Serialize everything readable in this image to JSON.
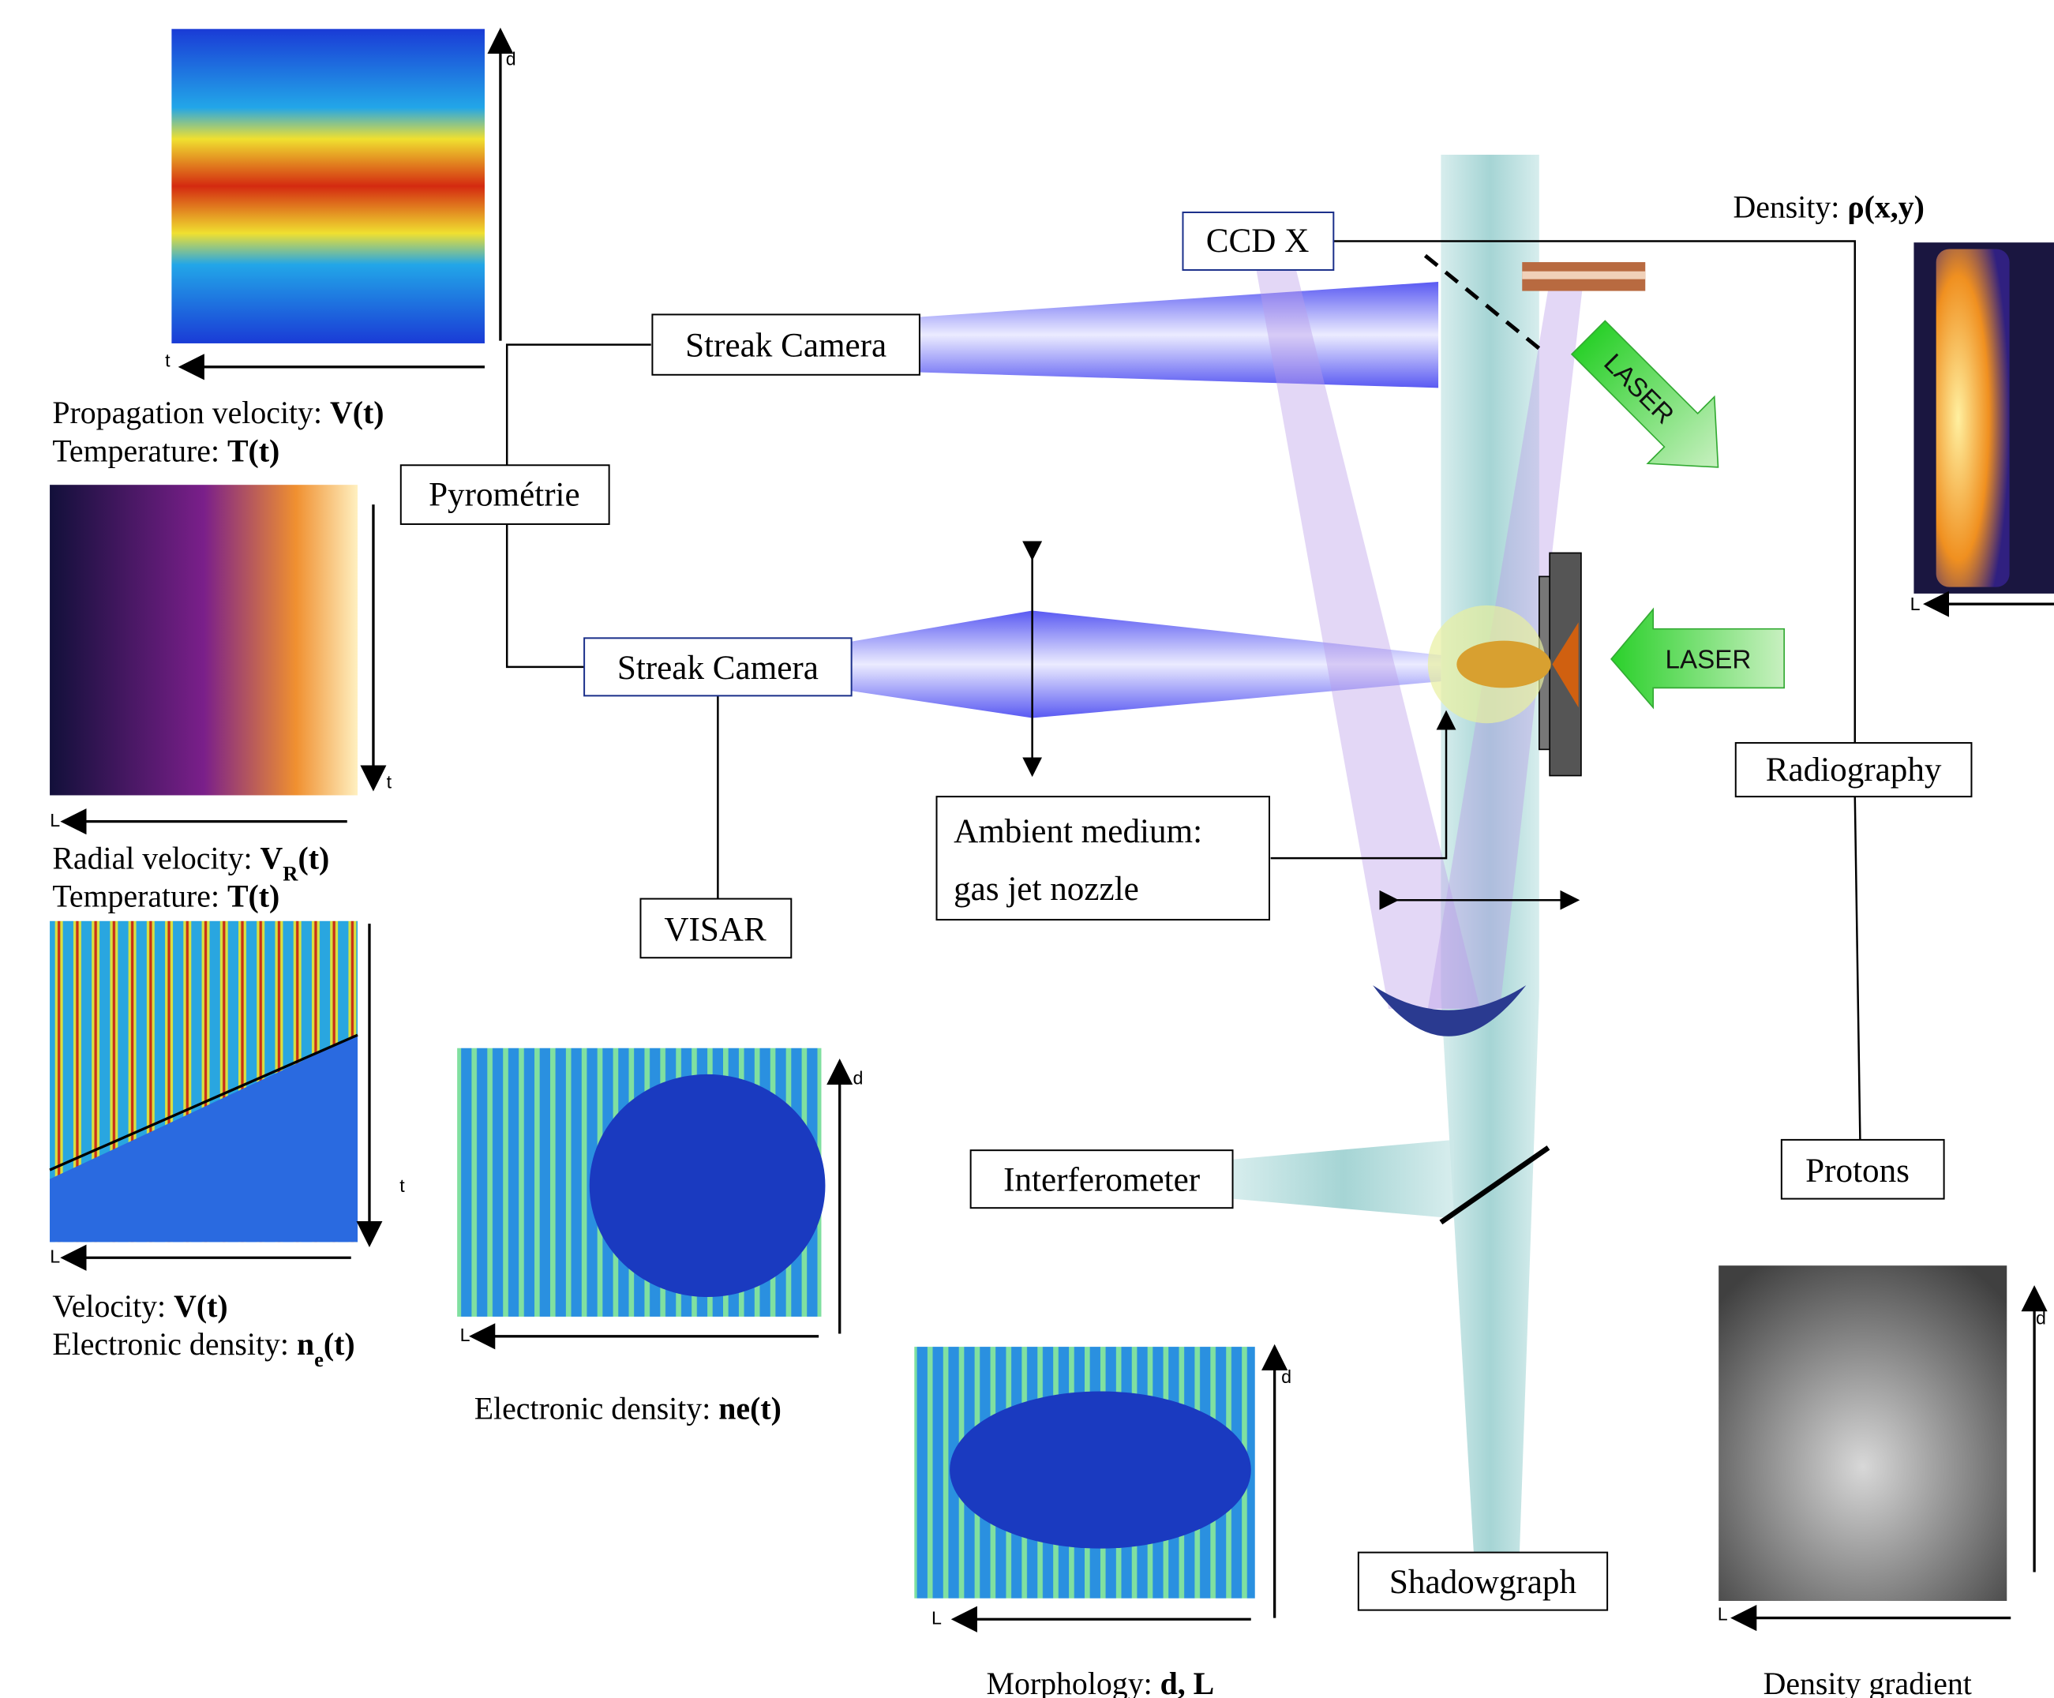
{
  "instruments": {
    "ccd_x": "CCD X",
    "streak_camera_top": "Streak Camera",
    "pyrometrie": "Pyrométrie",
    "streak_camera_bottom": "Streak Camera",
    "visar": "VISAR",
    "ambient_medium": [
      "Ambient medium:",
      "gas jet nozzle"
    ],
    "interferometer": "Interferometer",
    "shadowgraph": "Shadowgraph",
    "radiography": "Radiography",
    "protons": "Protons"
  },
  "lasers": [
    "LASER",
    "LASER"
  ],
  "panels": [
    {
      "axes": [
        "t",
        "d"
      ],
      "caption": [
        [
          {
            "text": "Propagation velocity: "
          },
          {
            "text": "V(t)",
            "bold": true
          }
        ],
        [
          {
            "text": "Temperature: "
          },
          {
            "text": "T(t)",
            "bold": true
          }
        ]
      ]
    },
    {
      "axes": [
        "t",
        "L"
      ],
      "caption": [
        [
          {
            "text": "Radial velocity: "
          },
          {
            "text": "V",
            "bold": true
          },
          {
            "text": "R",
            "bold": true,
            "sub": true
          },
          {
            "text": "(t)",
            "bold": true
          }
        ],
        [
          {
            "text": "Temperature: "
          },
          {
            "text": "T(t)",
            "bold": true
          }
        ]
      ]
    },
    {
      "axes": [
        "t",
        "L"
      ],
      "caption": [
        [
          {
            "text": "Velocity: "
          },
          {
            "text": "V(t)",
            "bold": true
          }
        ],
        [
          {
            "text": "Electronic density: "
          },
          {
            "text": "n",
            "bold": true
          },
          {
            "text": "e",
            "bold": true,
            "sub": true
          },
          {
            "text": "(t)",
            "bold": true
          }
        ]
      ]
    },
    {
      "axes": [
        "d",
        "L"
      ],
      "caption": [
        [
          {
            "text": "Electronic density: "
          },
          {
            "text": "ne(t)",
            "bold": true
          }
        ]
      ]
    },
    {
      "axes": [
        "d",
        "L"
      ],
      "caption": [
        [
          {
            "text": "Morphology: "
          },
          {
            "text": "d, L",
            "bold": true
          }
        ]
      ]
    },
    {
      "axes": [
        "d",
        "L"
      ],
      "caption": [
        [
          {
            "text": "Density gradient"
          }
        ]
      ]
    },
    {
      "axes": [
        "L"
      ],
      "caption": [
        [
          {
            "text": "Density: "
          },
          {
            "text": "ρ(x,y)",
            "bold": true
          }
        ]
      ]
    }
  ]
}
